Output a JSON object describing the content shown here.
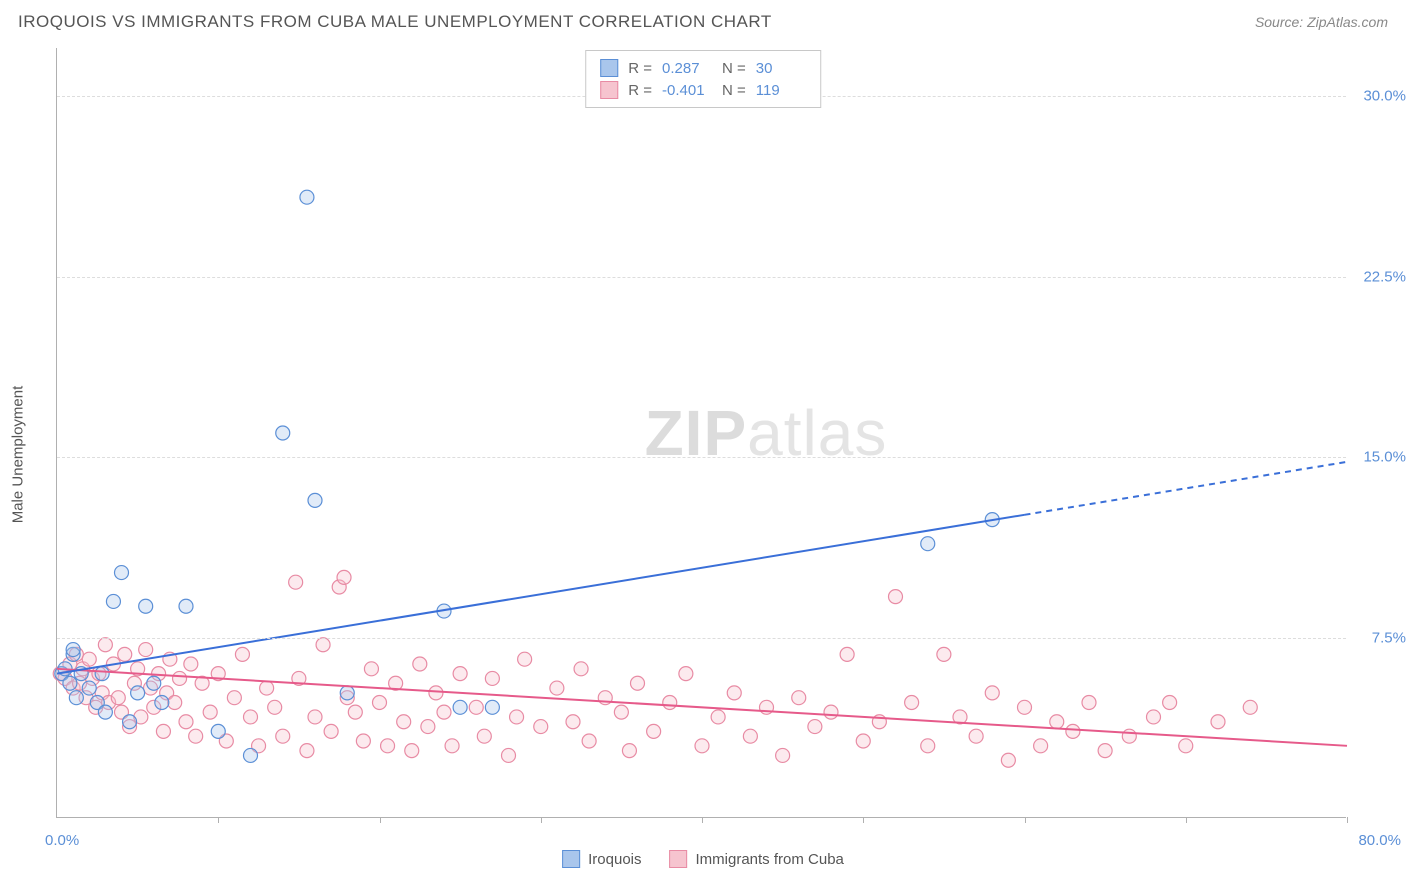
{
  "title": "IROQUOIS VS IMMIGRANTS FROM CUBA MALE UNEMPLOYMENT CORRELATION CHART",
  "source": "Source: ZipAtlas.com",
  "y_axis_label": "Male Unemployment",
  "watermark_bold": "ZIP",
  "watermark_light": "atlas",
  "chart": {
    "type": "scatter",
    "background_color": "#ffffff",
    "grid_color": "#dddddd",
    "axis_color": "#b0b0b0",
    "tick_label_color": "#5b8fd6",
    "xlim": [
      0,
      80
    ],
    "ylim": [
      0,
      32
    ],
    "x_origin_label": "0.0%",
    "x_max_label": "80.0%",
    "x_ticks": [
      10,
      20,
      30,
      40,
      50,
      60,
      70,
      80
    ],
    "y_ticks": [
      {
        "v": 7.5,
        "label": "7.5%"
      },
      {
        "v": 15.0,
        "label": "15.0%"
      },
      {
        "v": 22.5,
        "label": "22.5%"
      },
      {
        "v": 30.0,
        "label": "30.0%"
      }
    ],
    "marker_radius": 7,
    "marker_stroke_width": 1.2,
    "marker_fill_opacity": 0.35,
    "series": [
      {
        "name": "Iroquois",
        "color_fill": "#a9c6ec",
        "color_stroke": "#5b8fd6",
        "R": "0.287",
        "N": "30",
        "trend": {
          "x1": 0,
          "y1": 6.0,
          "x2": 60,
          "y2": 12.6,
          "x2_ext": 80,
          "y2_ext": 14.8,
          "color": "#3a6fd8",
          "width": 2
        },
        "points": [
          [
            0.3,
            6.0
          ],
          [
            0.5,
            6.2
          ],
          [
            0.8,
            5.6
          ],
          [
            1.0,
            6.8
          ],
          [
            1.2,
            5.0
          ],
          [
            1.0,
            7.0
          ],
          [
            1.5,
            6.0
          ],
          [
            2.0,
            5.4
          ],
          [
            2.5,
            4.8
          ],
          [
            2.8,
            6.0
          ],
          [
            3.0,
            4.4
          ],
          [
            3.5,
            9.0
          ],
          [
            4.0,
            10.2
          ],
          [
            4.5,
            4.0
          ],
          [
            5.0,
            5.2
          ],
          [
            5.5,
            8.8
          ],
          [
            6.0,
            5.6
          ],
          [
            6.5,
            4.8
          ],
          [
            8.0,
            8.8
          ],
          [
            10.0,
            3.6
          ],
          [
            12.0,
            2.6
          ],
          [
            14.0,
            16.0
          ],
          [
            15.5,
            25.8
          ],
          [
            16.0,
            13.2
          ],
          [
            18.0,
            5.2
          ],
          [
            24.0,
            8.6
          ],
          [
            25.0,
            4.6
          ],
          [
            27.0,
            4.6
          ],
          [
            54.0,
            11.4
          ],
          [
            58.0,
            12.4
          ]
        ]
      },
      {
        "name": "Immigrants from Cuba",
        "color_fill": "#f6c4cf",
        "color_stroke": "#e88ba4",
        "R": "-0.401",
        "N": "119",
        "trend": {
          "x1": 0,
          "y1": 6.2,
          "x2": 80,
          "y2": 3.0,
          "color": "#e65a8a",
          "width": 2
        },
        "points": [
          [
            0.2,
            6.0
          ],
          [
            0.5,
            5.8
          ],
          [
            0.8,
            6.4
          ],
          [
            1.0,
            5.4
          ],
          [
            1.2,
            6.8
          ],
          [
            1.4,
            5.6
          ],
          [
            1.6,
            6.2
          ],
          [
            1.8,
            5.0
          ],
          [
            2.0,
            6.6
          ],
          [
            2.2,
            5.8
          ],
          [
            2.4,
            4.6
          ],
          [
            2.6,
            6.0
          ],
          [
            2.8,
            5.2
          ],
          [
            3.0,
            7.2
          ],
          [
            3.2,
            4.8
          ],
          [
            3.5,
            6.4
          ],
          [
            3.8,
            5.0
          ],
          [
            4.0,
            4.4
          ],
          [
            4.2,
            6.8
          ],
          [
            4.5,
            3.8
          ],
          [
            4.8,
            5.6
          ],
          [
            5.0,
            6.2
          ],
          [
            5.2,
            4.2
          ],
          [
            5.5,
            7.0
          ],
          [
            5.8,
            5.4
          ],
          [
            6.0,
            4.6
          ],
          [
            6.3,
            6.0
          ],
          [
            6.6,
            3.6
          ],
          [
            6.8,
            5.2
          ],
          [
            7.0,
            6.6
          ],
          [
            7.3,
            4.8
          ],
          [
            7.6,
            5.8
          ],
          [
            8.0,
            4.0
          ],
          [
            8.3,
            6.4
          ],
          [
            8.6,
            3.4
          ],
          [
            9.0,
            5.6
          ],
          [
            9.5,
            4.4
          ],
          [
            10.0,
            6.0
          ],
          [
            10.5,
            3.2
          ],
          [
            11.0,
            5.0
          ],
          [
            11.5,
            6.8
          ],
          [
            12.0,
            4.2
          ],
          [
            12.5,
            3.0
          ],
          [
            13.0,
            5.4
          ],
          [
            13.5,
            4.6
          ],
          [
            14.0,
            3.4
          ],
          [
            14.8,
            9.8
          ],
          [
            15.0,
            5.8
          ],
          [
            15.5,
            2.8
          ],
          [
            16.0,
            4.2
          ],
          [
            16.5,
            7.2
          ],
          [
            17.0,
            3.6
          ],
          [
            17.5,
            9.6
          ],
          [
            17.8,
            10.0
          ],
          [
            18.0,
            5.0
          ],
          [
            18.5,
            4.4
          ],
          [
            19.0,
            3.2
          ],
          [
            19.5,
            6.2
          ],
          [
            20.0,
            4.8
          ],
          [
            20.5,
            3.0
          ],
          [
            21.0,
            5.6
          ],
          [
            21.5,
            4.0
          ],
          [
            22.0,
            2.8
          ],
          [
            22.5,
            6.4
          ],
          [
            23.0,
            3.8
          ],
          [
            23.5,
            5.2
          ],
          [
            24.0,
            4.4
          ],
          [
            24.5,
            3.0
          ],
          [
            25.0,
            6.0
          ],
          [
            26.0,
            4.6
          ],
          [
            26.5,
            3.4
          ],
          [
            27.0,
            5.8
          ],
          [
            28.0,
            2.6
          ],
          [
            28.5,
            4.2
          ],
          [
            29.0,
            6.6
          ],
          [
            30.0,
            3.8
          ],
          [
            31.0,
            5.4
          ],
          [
            32.0,
            4.0
          ],
          [
            32.5,
            6.2
          ],
          [
            33.0,
            3.2
          ],
          [
            34.0,
            5.0
          ],
          [
            35.0,
            4.4
          ],
          [
            35.5,
            2.8
          ],
          [
            36.0,
            5.6
          ],
          [
            37.0,
            3.6
          ],
          [
            38.0,
            4.8
          ],
          [
            39.0,
            6.0
          ],
          [
            40.0,
            3.0
          ],
          [
            41.0,
            4.2
          ],
          [
            42.0,
            5.2
          ],
          [
            43.0,
            3.4
          ],
          [
            44.0,
            4.6
          ],
          [
            45.0,
            2.6
          ],
          [
            46.0,
            5.0
          ],
          [
            47.0,
            3.8
          ],
          [
            48.0,
            4.4
          ],
          [
            49.0,
            6.8
          ],
          [
            50.0,
            3.2
          ],
          [
            51.0,
            4.0
          ],
          [
            52.0,
            9.2
          ],
          [
            53.0,
            4.8
          ],
          [
            54.0,
            3.0
          ],
          [
            55.0,
            6.8
          ],
          [
            56.0,
            4.2
          ],
          [
            57.0,
            3.4
          ],
          [
            58.0,
            5.2
          ],
          [
            59.0,
            2.4
          ],
          [
            60.0,
            4.6
          ],
          [
            61.0,
            3.0
          ],
          [
            62.0,
            4.0
          ],
          [
            63.0,
            3.6
          ],
          [
            64.0,
            4.8
          ],
          [
            65.0,
            2.8
          ],
          [
            66.5,
            3.4
          ],
          [
            68.0,
            4.2
          ],
          [
            69.0,
            4.8
          ],
          [
            70.0,
            3.0
          ],
          [
            72.0,
            4.0
          ],
          [
            74.0,
            4.6
          ]
        ]
      }
    ]
  },
  "stats_legend_labels": {
    "R": "R =",
    "N": "N ="
  },
  "bottom_legend": [
    "Iroquois",
    "Immigrants from Cuba"
  ]
}
